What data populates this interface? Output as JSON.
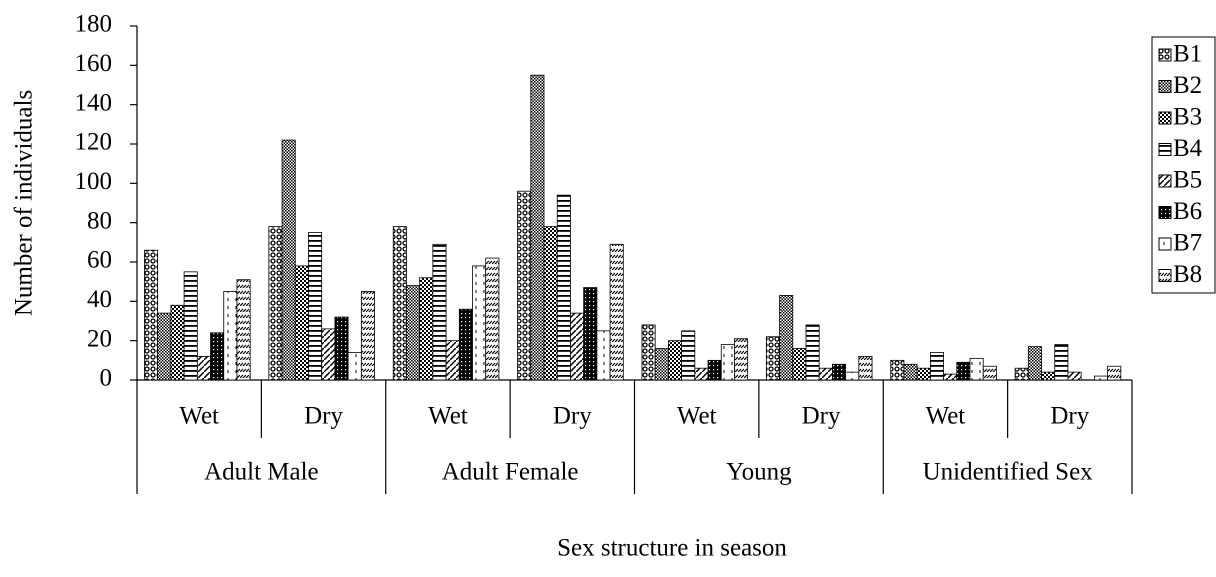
{
  "chart_data": {
    "type": "bar",
    "y_label": "Number of individuals",
    "x_label": "Sex structure in season",
    "categories": [
      "Wet",
      "Dry",
      "Wet",
      "Dry",
      "Wet",
      "Dry",
      "Wet",
      "Dry"
    ],
    "groups": [
      "Adult Male",
      "Adult Female",
      "Young",
      "Unidentified Sex"
    ],
    "ylim": [
      0,
      180
    ],
    "yticks": [
      0,
      20,
      40,
      60,
      80,
      100,
      120,
      140,
      160,
      180
    ],
    "legend": "right",
    "series": [
      {
        "name": "B1",
        "color": "#000000",
        "values": [
          66,
          78,
          78,
          96,
          28,
          22,
          10,
          6
        ]
      },
      {
        "name": "B2",
        "color": "#000000",
        "values": [
          34,
          122,
          48,
          155,
          16,
          43,
          8,
          17
        ]
      },
      {
        "name": "B3",
        "color": "#000000",
        "values": [
          38,
          58,
          52,
          78,
          20,
          16,
          6,
          4
        ]
      },
      {
        "name": "B4",
        "color": "#000000",
        "values": [
          55,
          75,
          69,
          94,
          25,
          28,
          14,
          18
        ]
      },
      {
        "name": "B5",
        "color": "#000000",
        "values": [
          12,
          26,
          20,
          34,
          6,
          6,
          3,
          4
        ]
      },
      {
        "name": "B6",
        "color": "#000000",
        "values": [
          24,
          32,
          36,
          47,
          10,
          8,
          9,
          0
        ]
      },
      {
        "name": "B7",
        "color": "#000000",
        "values": [
          45,
          14,
          58,
          25,
          18,
          4,
          11,
          2
        ]
      },
      {
        "name": "B8",
        "color": "#000000",
        "values": [
          51,
          45,
          62,
          69,
          21,
          12,
          7,
          7
        ]
      }
    ]
  }
}
